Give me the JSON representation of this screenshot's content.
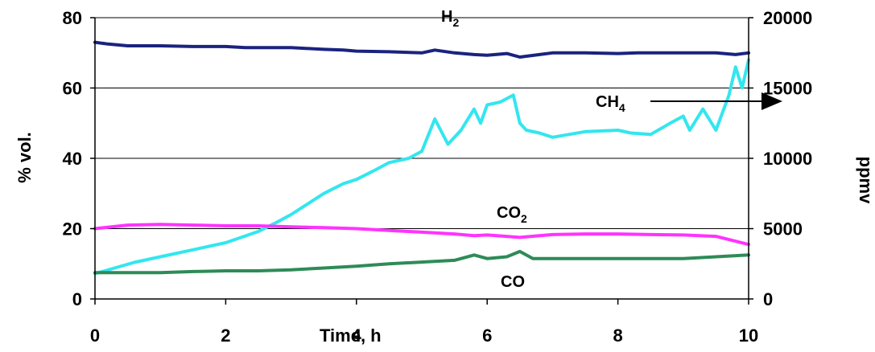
{
  "chart_data": {
    "type": "line",
    "xlabel": "Time, h",
    "ylabel_left": "% vol.",
    "ylabel_right": "ppmv",
    "xlim": [
      0,
      10
    ],
    "ylim_left": [
      0,
      80
    ],
    "ylim_right": [
      0,
      20000
    ],
    "xticks": [
      "0",
      "2",
      "4",
      "6",
      "8",
      "10"
    ],
    "yticks_left": [
      "0",
      "20",
      "40",
      "60",
      "80"
    ],
    "yticks_right": [
      "0",
      "5000",
      "10000",
      "15000",
      "20000"
    ],
    "grid": "horizontal",
    "legend": "none",
    "series": [
      {
        "name": "H2",
        "label_main": "H",
        "label_sub": "2",
        "axis": "left",
        "color": "#1a237e",
        "x": [
          0,
          0.2,
          0.5,
          0.8,
          1.0,
          1.5,
          2.0,
          2.3,
          2.5,
          3.0,
          3.2,
          3.5,
          3.8,
          4.0,
          4.5,
          5.0,
          5.2,
          5.5,
          5.8,
          6.0,
          6.3,
          6.5,
          6.8,
          7.0,
          7.5,
          8.0,
          8.3,
          8.5,
          9.0,
          9.5,
          9.8,
          10.0
        ],
        "y": [
          73,
          72.5,
          72,
          72,
          72,
          71.8,
          71.8,
          71.5,
          71.5,
          71.5,
          71.3,
          71,
          70.8,
          70.5,
          70.3,
          70,
          70.8,
          70,
          69.5,
          69.3,
          69.8,
          68.8,
          69.5,
          70,
          70,
          69.8,
          70,
          70,
          70,
          70,
          69.5,
          70
        ]
      },
      {
        "name": "CH4",
        "label_main": "CH",
        "label_sub": "4",
        "axis": "right",
        "color": "#33e6ef",
        "x": [
          0,
          0.3,
          0.6,
          1.0,
          1.5,
          2.0,
          2.5,
          2.8,
          3.0,
          3.5,
          3.8,
          4.0,
          4.3,
          4.5,
          4.8,
          5.0,
          5.2,
          5.4,
          5.5,
          5.6,
          5.8,
          5.9,
          6.0,
          6.2,
          6.4,
          6.5,
          6.6,
          6.8,
          7.0,
          7.5,
          8.0,
          8.2,
          8.5,
          8.8,
          9.0,
          9.1,
          9.3,
          9.5,
          9.7,
          9.8,
          9.9,
          10.0
        ],
        "y": [
          1800,
          2200,
          2600,
          3000,
          3500,
          4000,
          4800,
          5500,
          6000,
          7500,
          8200,
          8500,
          9200,
          9700,
          10000,
          10500,
          12800,
          11000,
          11500,
          12000,
          13500,
          12500,
          13800,
          14000,
          14500,
          12500,
          12000,
          11800,
          11500,
          11900,
          12000,
          11800,
          11700,
          12500,
          13000,
          12000,
          13500,
          12000,
          14500,
          16500,
          15000,
          17000
        ]
      },
      {
        "name": "CO2",
        "label_main": "CO",
        "label_sub": "2",
        "axis": "left",
        "color": "#ff33ff",
        "x": [
          0,
          0.5,
          1.0,
          1.5,
          2.0,
          2.5,
          3.0,
          3.5,
          4.0,
          4.5,
          5.0,
          5.5,
          5.8,
          6.0,
          6.5,
          7.0,
          7.5,
          8.0,
          8.5,
          9.0,
          9.5,
          10.0
        ],
        "y": [
          20,
          21,
          21.2,
          21,
          20.8,
          20.8,
          20.5,
          20.3,
          20,
          19.5,
          19,
          18.5,
          18,
          18.2,
          17.5,
          18.3,
          18.5,
          18.5,
          18.3,
          18.2,
          17.8,
          15.5
        ]
      },
      {
        "name": "CO",
        "label_main": "CO",
        "label_sub": "",
        "axis": "left",
        "color": "#2e8b57",
        "x": [
          0,
          0.5,
          1.0,
          1.5,
          2.0,
          2.5,
          3.0,
          3.5,
          4.0,
          4.5,
          5.0,
          5.5,
          5.8,
          6.0,
          6.3,
          6.5,
          6.7,
          7.0,
          7.5,
          8.0,
          8.5,
          9.0,
          9.5,
          10.0
        ],
        "y": [
          7.5,
          7.5,
          7.5,
          7.8,
          8,
          8,
          8.3,
          8.8,
          9.3,
          10,
          10.5,
          11,
          12.5,
          11.5,
          12,
          13.5,
          11.5,
          11.5,
          11.5,
          11.5,
          11.5,
          11.5,
          12,
          12.5
        ]
      }
    ]
  }
}
